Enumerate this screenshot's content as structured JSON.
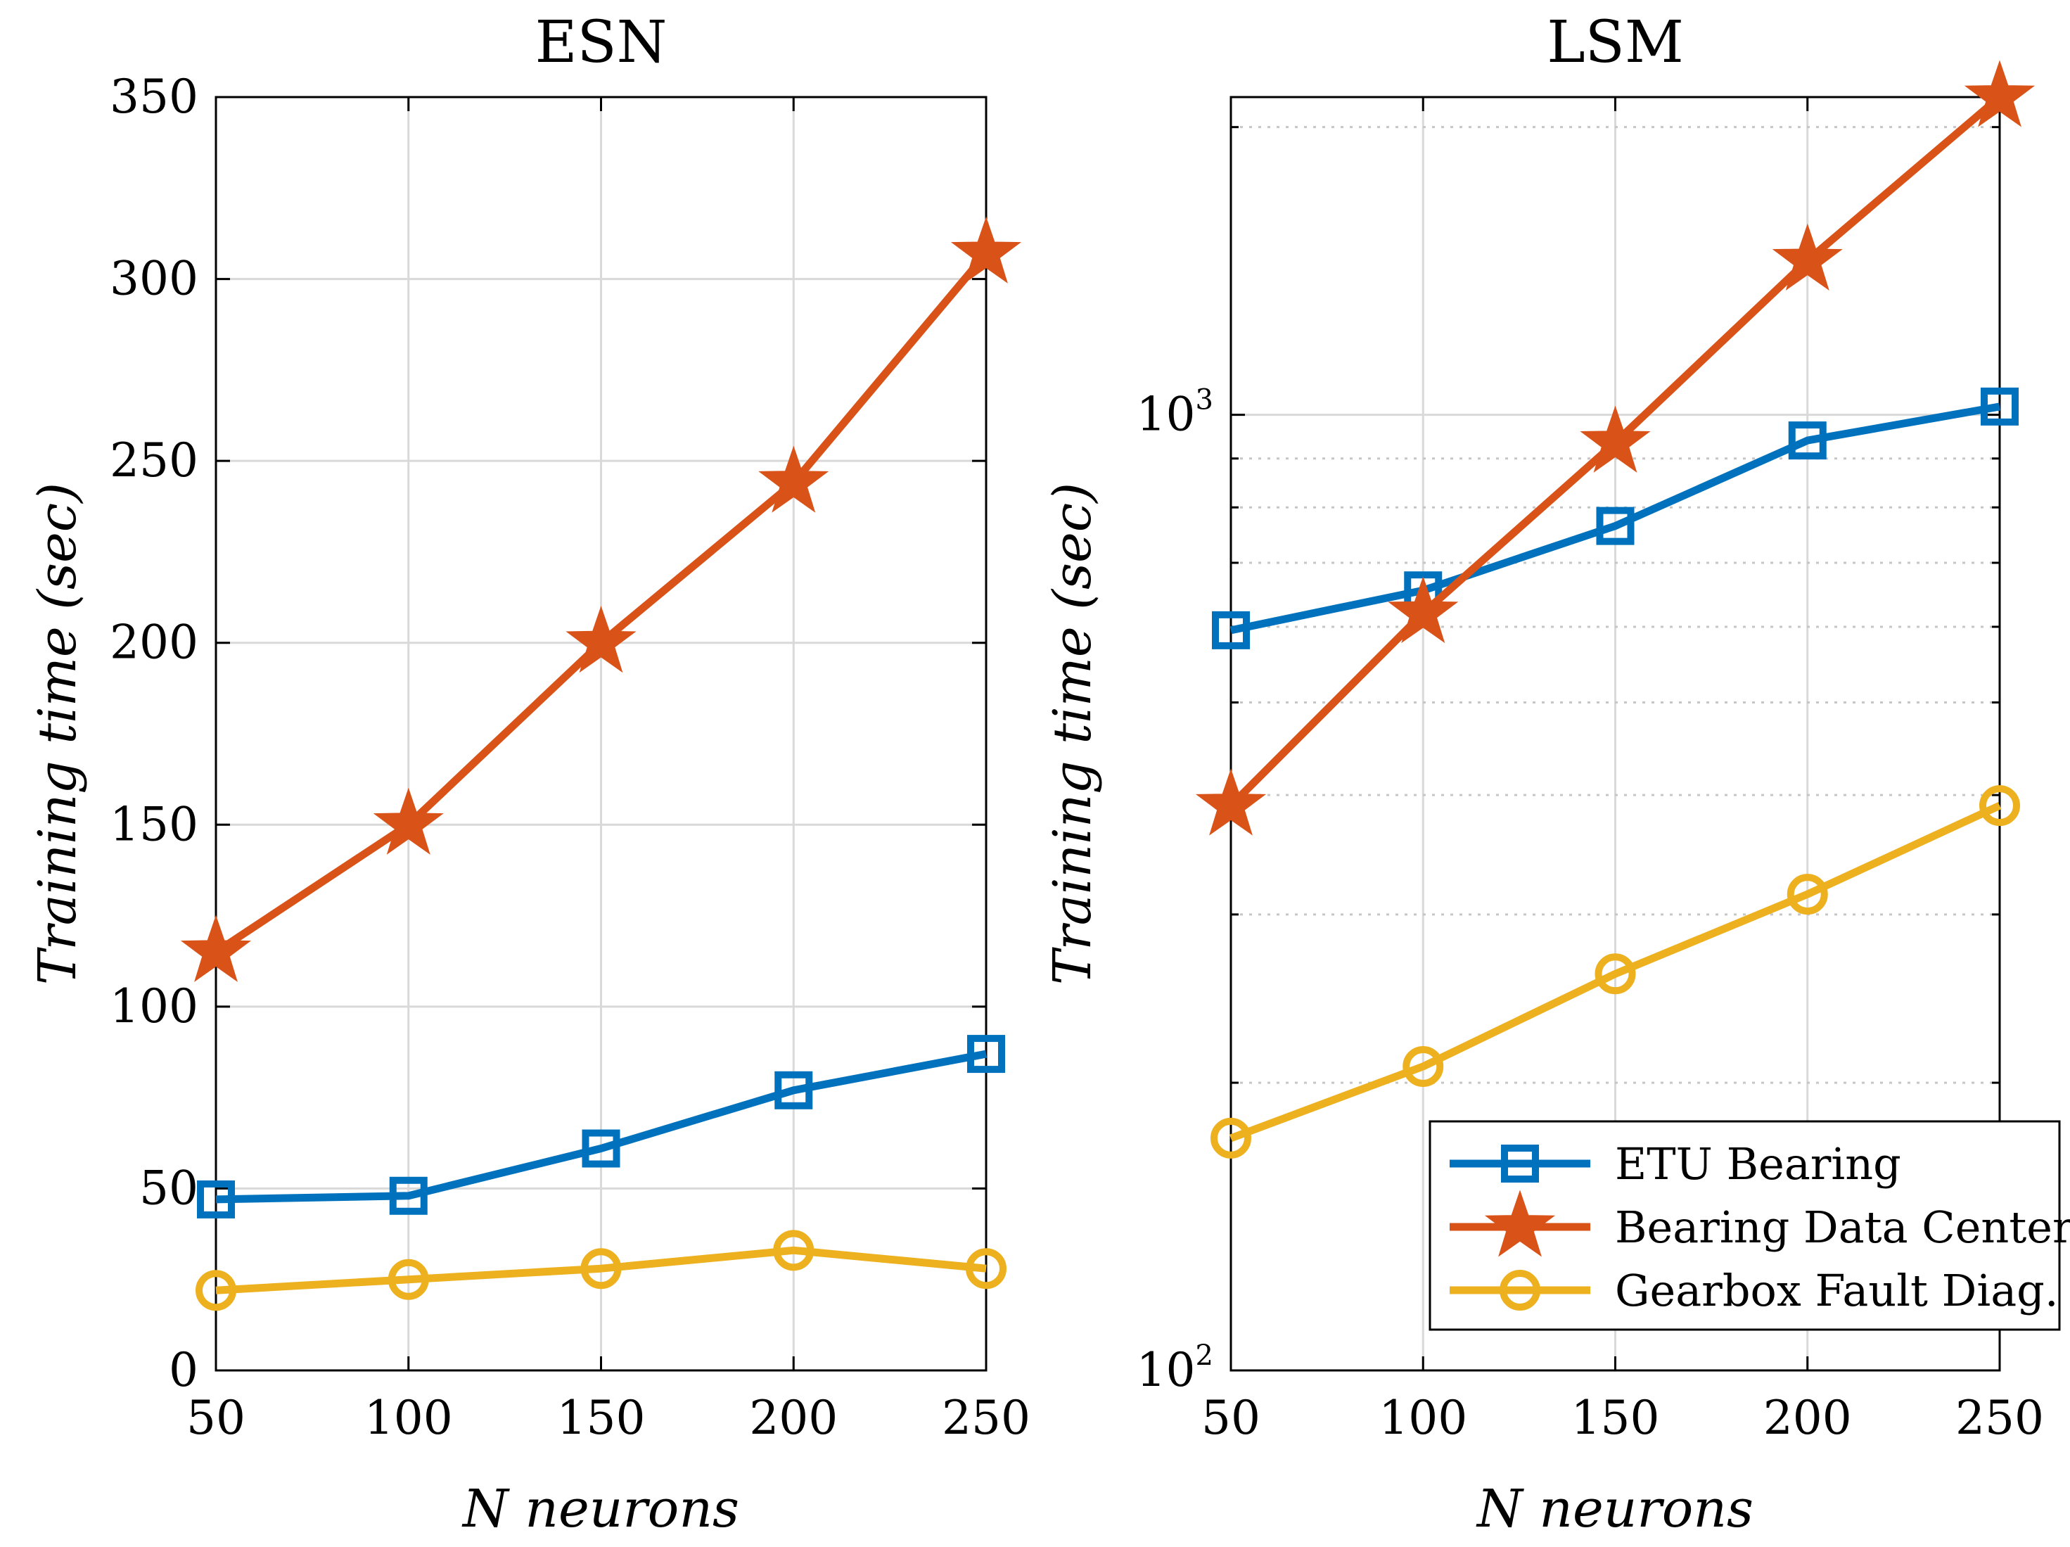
{
  "colors": {
    "etu": "#0072BD",
    "bdc": "#D95319",
    "gfd": "#EDB120",
    "grid": "#d9d9d9",
    "axis": "#000000"
  },
  "legend": {
    "items": [
      {
        "label": "ETU Bearing",
        "marker": "square",
        "color_key": "etu"
      },
      {
        "label": "Bearing Data Center",
        "marker": "star",
        "color_key": "bdc"
      },
      {
        "label": "Gearbox Fault Diag.",
        "marker": "circle",
        "color_key": "gfd"
      }
    ]
  },
  "chart_data": [
    {
      "type": "line",
      "title": "ESN",
      "xlabel": "N neurons",
      "ylabel": "Training time (sec)",
      "x": [
        50,
        100,
        150,
        200,
        250
      ],
      "xlim": [
        50,
        250
      ],
      "ylim": [
        0,
        350
      ],
      "yscale": "linear",
      "xticks": [
        "50",
        "100",
        "150",
        "200",
        "250"
      ],
      "yticks": [
        0,
        50,
        100,
        150,
        200,
        250,
        300,
        350
      ],
      "ytick_labels": [
        "0",
        "50",
        "100",
        "150",
        "200",
        "250",
        "300",
        "350"
      ],
      "grid": true,
      "series": [
        {
          "name": "ETU Bearing",
          "values": [
            47,
            48,
            61,
            77,
            87
          ]
        },
        {
          "name": "Bearing Data Center",
          "values": [
            115,
            150,
            200,
            244,
            307
          ]
        },
        {
          "name": "Gearbox Fault Diag.",
          "values": [
            22,
            25,
            28,
            33,
            28
          ]
        }
      ]
    },
    {
      "type": "line",
      "title": "LSM",
      "xlabel": "N neurons",
      "ylabel": "Training time (sec)",
      "x": [
        50,
        100,
        150,
        200,
        250
      ],
      "xlim": [
        50,
        250
      ],
      "ylim": [
        100,
        2150
      ],
      "yscale": "log",
      "xticks": [
        "50",
        "100",
        "150",
        "200",
        "250"
      ],
      "yticks": [
        100,
        1000
      ],
      "ytick_labels": [
        {
          "base": "10",
          "exp": "2"
        },
        {
          "base": "10",
          "exp": "3"
        }
      ],
      "minor_yticks": [
        200,
        300,
        400,
        500,
        600,
        700,
        800,
        900,
        2000
      ],
      "grid": true,
      "legend_position": "bottom-right",
      "series": [
        {
          "name": "ETU Bearing",
          "values": [
            595,
            655,
            765,
            940,
            1020
          ]
        },
        {
          "name": "Bearing Data Center",
          "values": [
            390,
            620,
            935,
            1450,
            2150
          ]
        },
        {
          "name": "Gearbox Fault Diag.",
          "values": [
            175,
            208,
            260,
            315,
            390
          ]
        }
      ]
    }
  ]
}
